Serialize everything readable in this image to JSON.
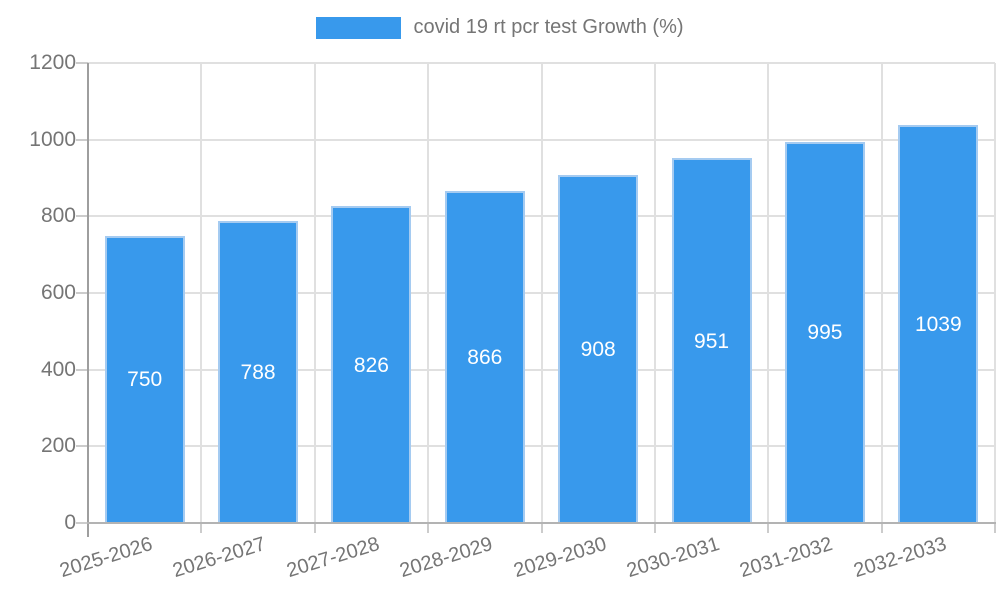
{
  "page": {
    "background": "#ffffff"
  },
  "legend": {
    "label": "covid 19 rt pcr test Growth (%)"
  },
  "colors": {
    "bar_fill": "#3899ec",
    "bar_border": "#a5cbf1",
    "label_text": "#757575",
    "value_text": "#ffffff",
    "gridline": "#e0e0e0",
    "y_axis_line": "#9e9e9e",
    "x_axis_line": "#b3b3b3",
    "tick": "#cccccc"
  },
  "chart_data": {
    "type": "bar",
    "title": "covid 19 rt pcr test Growth (%)",
    "categories": [
      "2025-2026",
      "2026-2027",
      "2027-2028",
      "2028-2029",
      "2029-2030",
      "2030-2031",
      "2031-2032",
      "2032-2033"
    ],
    "series": [
      {
        "name": "covid 19 rt pcr test Growth (%)",
        "values": [
          750,
          788,
          826,
          866,
          908,
          951,
          995,
          1039
        ]
      }
    ],
    "data_labels": [
      "750",
      "788",
      "826",
      "866",
      "908",
      "951",
      "995",
      "1039"
    ],
    "xlabel": "",
    "ylabel": "",
    "ylim": [
      0,
      1200
    ],
    "yticks": [
      0,
      200,
      400,
      600,
      800,
      1000,
      1200
    ],
    "x_tick_rotation_deg": -17,
    "grid": true,
    "legend_position": "top-center",
    "value_labels_inside_bars": true
  }
}
